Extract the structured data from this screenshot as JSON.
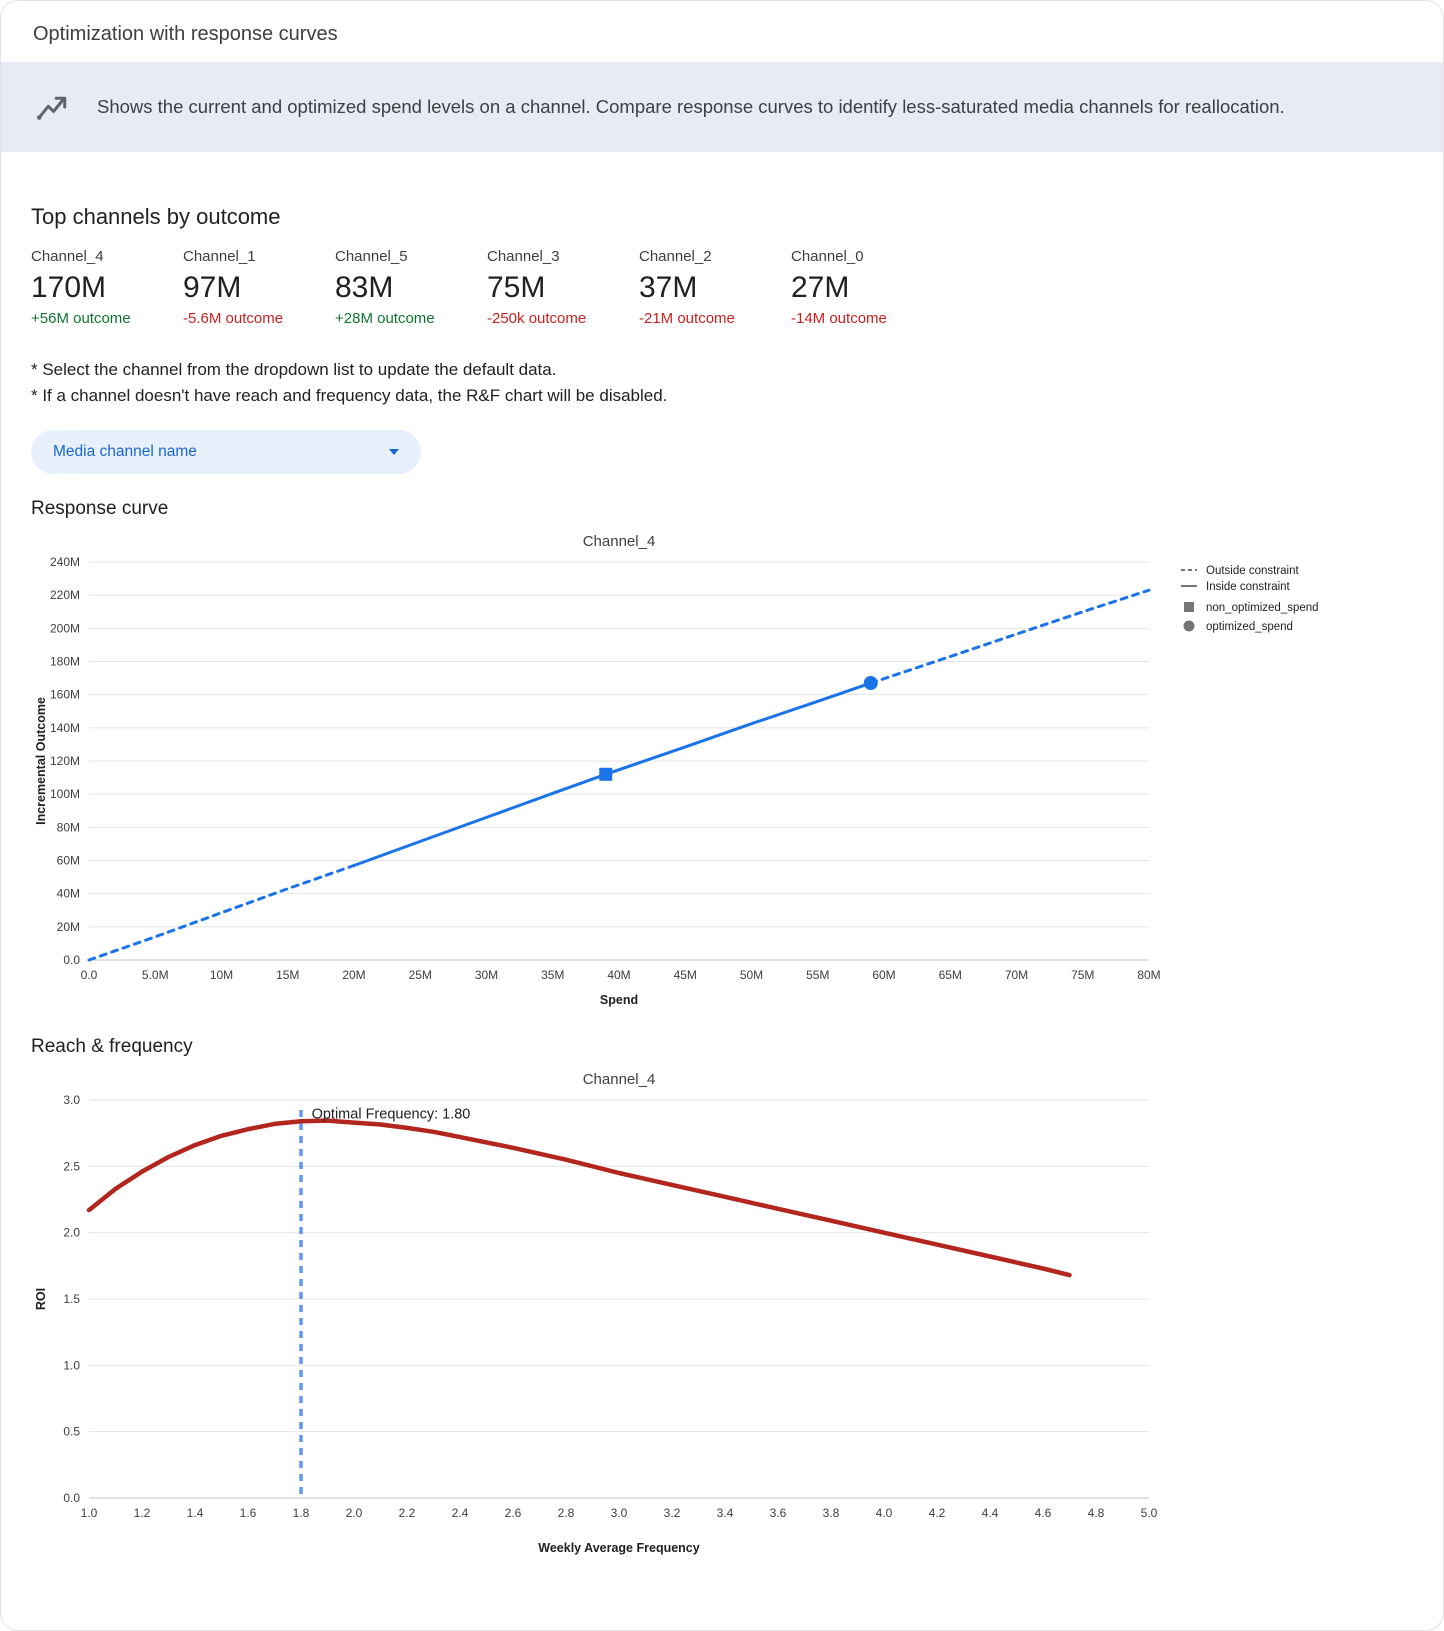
{
  "header": {
    "title": "Optimization with response curves"
  },
  "banner": {
    "icon": "insights-icon",
    "text": "Shows the current and optimized spend levels on a channel. Compare response curves to identify less-saturated media channels for reallocation."
  },
  "top_channels": {
    "heading": "Top channels by outcome",
    "cards": [
      {
        "name": "Channel_4",
        "value": "170M",
        "outcome": "+56M outcome",
        "direction": "positive"
      },
      {
        "name": "Channel_1",
        "value": "97M",
        "outcome": "-5.6M outcome",
        "direction": "negative"
      },
      {
        "name": "Channel_5",
        "value": "83M",
        "outcome": "+28M outcome",
        "direction": "positive"
      },
      {
        "name": "Channel_3",
        "value": "75M",
        "outcome": "-250k outcome",
        "direction": "negative"
      },
      {
        "name": "Channel_2",
        "value": "37M",
        "outcome": "-21M outcome",
        "direction": "negative"
      },
      {
        "name": "Channel_0",
        "value": "27M",
        "outcome": "-14M outcome",
        "direction": "negative"
      }
    ]
  },
  "notes": {
    "line1": "* Select the channel from the dropdown list to update the default data.",
    "line2": "* If a channel doesn't have reach and frequency data, the R&F chart will be disabled."
  },
  "dropdown": {
    "label": "Media channel name",
    "icon": "caret-down-icon"
  },
  "sections": {
    "response_curve": "Response curve",
    "reach_frequency": "Reach & frequency"
  },
  "colors": {
    "accent_blue": "#1a73e8",
    "positive_green": "#137333",
    "negative_red": "#c5221f",
    "curve_red": "#b3261e",
    "vline_blue": "#5e97f6",
    "banner_bg": "#e8eaf6",
    "dropdown_bg": "#e8f0fe",
    "dropdown_text": "#1967d2",
    "legend_gray": "#757575"
  },
  "chart_data": [
    {
      "type": "line",
      "title": "Channel_4",
      "xlabel": "Spend",
      "ylabel": "Incremental Outcome",
      "xlim": [
        0,
        80
      ],
      "ylim": [
        0,
        240
      ],
      "grid": "horizontal",
      "legend_position": "right",
      "xticks": [
        0,
        5,
        10,
        15,
        20,
        25,
        30,
        35,
        40,
        45,
        50,
        55,
        60,
        65,
        70,
        75,
        80
      ],
      "xtick_labels": [
        "0.0",
        "5.0M",
        "10M",
        "15M",
        "20M",
        "25M",
        "30M",
        "35M",
        "40M",
        "45M",
        "50M",
        "55M",
        "60M",
        "65M",
        "70M",
        "75M",
        "80M"
      ],
      "yticks": [
        0,
        20,
        40,
        60,
        80,
        100,
        120,
        140,
        160,
        180,
        200,
        220,
        240
      ],
      "ytick_labels": [
        "0.0",
        "20M",
        "40M",
        "60M",
        "80M",
        "100M",
        "120M",
        "140M",
        "160M",
        "180M",
        "200M",
        "220M",
        "240M"
      ],
      "series": [
        {
          "name": "outside-constraint-lower",
          "label": "Outside constraint",
          "style": "dashed",
          "color": "#1a73e8",
          "width": 3,
          "x": [
            0,
            5,
            10,
            15,
            20
          ],
          "y": [
            0,
            14,
            28.5,
            43,
            57
          ]
        },
        {
          "name": "inside-constraint",
          "label": "Inside constraint",
          "style": "solid",
          "color": "#1a73e8",
          "width": 3,
          "x": [
            20,
            25,
            30,
            35,
            39,
            45,
            50,
            55,
            59
          ],
          "y": [
            57,
            71.5,
            86,
            100.5,
            112,
            128.5,
            142.5,
            156,
            167
          ]
        },
        {
          "name": "outside-constraint-upper",
          "label": "Outside constraint",
          "style": "dashed",
          "color": "#1a73e8",
          "width": 3,
          "x": [
            59,
            65,
            70,
            75,
            80
          ],
          "y": [
            167,
            183,
            196.5,
            210,
            223
          ]
        }
      ],
      "markers": [
        {
          "shape": "square",
          "label": "non_optimized_spend",
          "x": 39,
          "y": 112,
          "color": "#1a73e8"
        },
        {
          "shape": "circle",
          "label": "optimized_spend",
          "x": 59,
          "y": 167,
          "color": "#1a73e8"
        }
      ],
      "legend": [
        {
          "type": "dashed-line",
          "label": "Outside constraint"
        },
        {
          "type": "solid-line",
          "label": "Inside constraint"
        },
        {
          "type": "square",
          "label": "non_optimized_spend"
        },
        {
          "type": "circle",
          "label": "optimized_spend"
        }
      ]
    },
    {
      "type": "line",
      "title": "Channel_4",
      "xlabel": "Weekly Average Frequency",
      "ylabel": "ROI",
      "xlim": [
        1.0,
        5.0
      ],
      "ylim": [
        0,
        3.0
      ],
      "grid": "horizontal",
      "xticks": [
        1.0,
        1.2,
        1.4,
        1.6,
        1.8,
        2.0,
        2.2,
        2.4,
        2.6,
        2.8,
        3.0,
        3.2,
        3.4,
        3.6,
        3.8,
        4.0,
        4.2,
        4.4,
        4.6,
        4.8,
        5.0
      ],
      "xtick_labels": [
        "1.0",
        "1.2",
        "1.4",
        "1.6",
        "1.8",
        "2.0",
        "2.2",
        "2.4",
        "2.6",
        "2.8",
        "3.0",
        "3.2",
        "3.4",
        "3.6",
        "3.8",
        "4.0",
        "4.2",
        "4.4",
        "4.6",
        "4.8",
        "5.0"
      ],
      "yticks": [
        0,
        0.5,
        1.0,
        1.5,
        2.0,
        2.5,
        3.0
      ],
      "ytick_labels": [
        "0.0",
        "0.5",
        "1.0",
        "1.5",
        "2.0",
        "2.5",
        "3.0"
      ],
      "series": [
        {
          "name": "roi-curve",
          "label": "ROI",
          "style": "solid",
          "color": "#b3261e",
          "width": 4.5,
          "x": [
            1.0,
            1.1,
            1.2,
            1.3,
            1.4,
            1.5,
            1.6,
            1.7,
            1.8,
            1.9,
            2.0,
            2.1,
            2.2,
            2.3,
            2.4,
            2.6,
            2.8,
            3.0,
            3.2,
            3.4,
            3.6,
            3.8,
            4.0,
            4.2,
            4.4,
            4.6,
            4.7
          ],
          "y": [
            2.17,
            2.33,
            2.46,
            2.57,
            2.66,
            2.73,
            2.78,
            2.82,
            2.84,
            2.845,
            2.83,
            2.815,
            2.79,
            2.76,
            2.72,
            2.64,
            2.55,
            2.45,
            2.36,
            2.27,
            2.18,
            2.09,
            2.0,
            1.91,
            1.82,
            1.73,
            1.68
          ]
        }
      ],
      "vline": {
        "x": 1.8,
        "color": "#5e97f6",
        "style": "dashed",
        "label": "optimal-frequency-line"
      },
      "annotation": {
        "text": "Optimal Frequency: 1.80",
        "x": 1.84,
        "y": 2.86
      }
    }
  ]
}
